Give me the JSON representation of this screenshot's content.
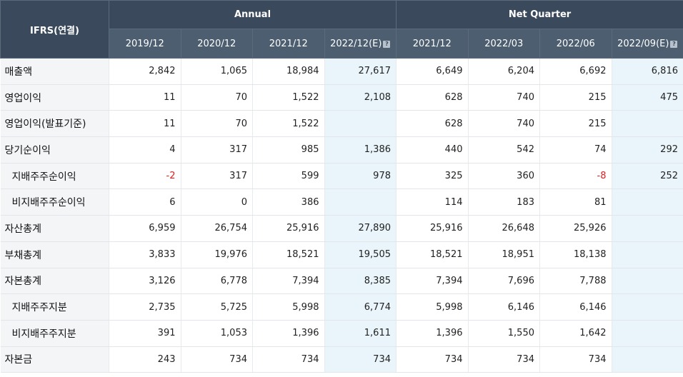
{
  "header": {
    "corner": "IFRS(연결)",
    "annual": "Annual",
    "quarter": "Net Quarter",
    "periods": [
      "2019/12",
      "2020/12",
      "2021/12",
      "2022/12(E)",
      "2021/12",
      "2022/03",
      "2022/06",
      "2022/09(E)"
    ],
    "estimate_icon": "?"
  },
  "rows": [
    {
      "label": "매출액",
      "values": [
        "2,842",
        "1,065",
        "18,984",
        "27,617",
        "6,649",
        "6,204",
        "6,692",
        "6,816"
      ]
    },
    {
      "label": "영업이익",
      "values": [
        "11",
        "70",
        "1,522",
        "2,108",
        "628",
        "740",
        "215",
        "475"
      ]
    },
    {
      "label": "영업이익(발표기준)",
      "values": [
        "11",
        "70",
        "1,522",
        "",
        "628",
        "740",
        "215",
        ""
      ]
    },
    {
      "label": "당기순이익",
      "values": [
        "4",
        "317",
        "985",
        "1,386",
        "440",
        "542",
        "74",
        "292"
      ]
    },
    {
      "label": "지배주주순이익",
      "values": [
        "-2",
        "317",
        "599",
        "978",
        "325",
        "360",
        "-8",
        "252"
      ]
    },
    {
      "label": "비지배주주순이익",
      "values": [
        "6",
        "0",
        "386",
        "",
        "114",
        "183",
        "81",
        ""
      ]
    },
    {
      "label": "자산총계",
      "values": [
        "6,959",
        "26,754",
        "25,916",
        "27,890",
        "25,916",
        "26,648",
        "25,926",
        ""
      ]
    },
    {
      "label": "부채총계",
      "values": [
        "3,833",
        "19,976",
        "18,521",
        "19,505",
        "18,521",
        "18,951",
        "18,138",
        ""
      ]
    },
    {
      "label": "자본총계",
      "values": [
        "3,126",
        "6,778",
        "7,394",
        "8,385",
        "7,394",
        "7,696",
        "7,788",
        ""
      ]
    },
    {
      "label": "지배주주지분",
      "values": [
        "2,735",
        "5,725",
        "5,998",
        "6,774",
        "5,998",
        "6,146",
        "6,146",
        ""
      ]
    },
    {
      "label": "비지배주주지분",
      "values": [
        "391",
        "1,053",
        "1,396",
        "1,611",
        "1,396",
        "1,550",
        "1,642",
        ""
      ]
    },
    {
      "label": "자본금",
      "values": [
        "243",
        "734",
        "734",
        "734",
        "734",
        "734",
        "734",
        ""
      ]
    }
  ],
  "colors": {
    "header_bg": "#3a4a5c",
    "subheader_bg": "#4d5e71",
    "estimate_bg": "#e9f5fa",
    "negative": "#e02020",
    "label_bg": "#f3f5f7"
  }
}
